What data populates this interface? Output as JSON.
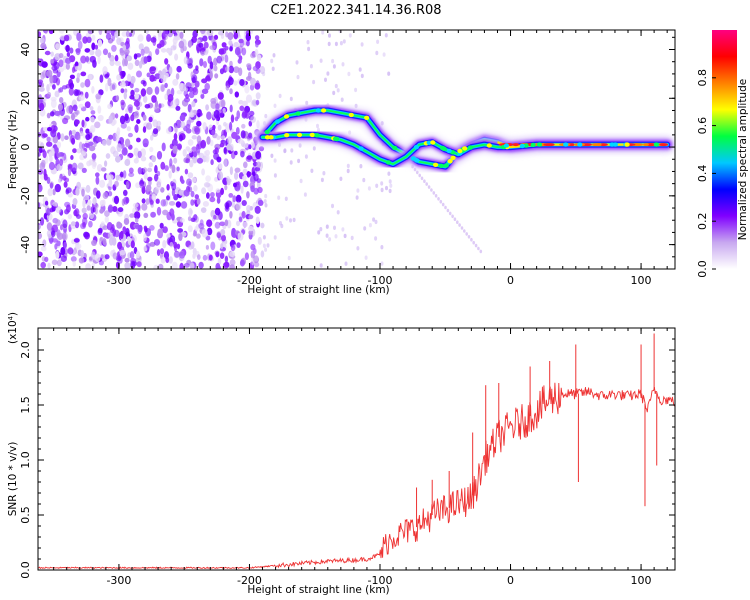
{
  "title": "C2E1.2022.341.14.36.R08",
  "chart_data": [
    {
      "type": "heatmap",
      "title": "C2E1.2022.341.14.36.R08",
      "xlabel": "Height of straight line (km)",
      "ylabel": "Frequency (Hz)",
      "xlim": [
        -362,
        126
      ],
      "ylim": [
        -50,
        48
      ],
      "x_ticks": [
        -300,
        -200,
        -100,
        0,
        100
      ],
      "y_ticks": [
        -40,
        -20,
        0,
        20,
        40
      ],
      "x_tick_labels": [
        "-300",
        "-200",
        "-100",
        "0",
        "100"
      ],
      "y_tick_labels": [
        "-40",
        "-20",
        "0",
        "20",
        "40"
      ],
      "grid": false,
      "signal_trace": {
        "x": [
          -190,
          -180,
          -170,
          -160,
          -150,
          -140,
          -130,
          -120,
          -110,
          -100,
          -90,
          -80,
          -70,
          -60,
          -50,
          -40,
          -30,
          -20,
          -10,
          0,
          20,
          40,
          60,
          80,
          100,
          120
        ],
        "upper_branch": [
          4,
          10,
          13,
          14,
          15,
          15,
          14,
          13,
          12,
          5,
          0,
          -3,
          -6,
          -7,
          -8,
          -2,
          1,
          3,
          2,
          0,
          1,
          1,
          1,
          1,
          1,
          1
        ],
        "lower_branch": [
          4,
          4,
          5,
          5,
          5,
          4,
          3,
          1,
          -2,
          -5,
          -7,
          -4,
          1,
          2,
          -1,
          -3,
          0,
          1,
          0,
          0,
          1,
          1,
          1,
          1,
          1,
          1
        ],
        "peak_amplitude": 0.9
      },
      "noise_region": {
        "x_start": -362,
        "x_end": -190,
        "amplitude": 0.15
      },
      "colorbar": {
        "label": "Normalized spectral amplitude",
        "range": [
          0.0,
          1.0
        ],
        "ticks": [
          0.0,
          0.2,
          0.4,
          0.6,
          0.8
        ],
        "tick_labels": [
          "0.0",
          "0.2",
          "0.4",
          "0.6",
          "0.8"
        ],
        "colors": [
          "#ffffff",
          "#c8a8f0",
          "#8000ff",
          "#0000ff",
          "#00c8ff",
          "#00ff40",
          "#ffff00",
          "#ff8000",
          "#ff0000",
          "#ff0080"
        ]
      }
    },
    {
      "type": "line",
      "xlabel": "Height of straight line (km)",
      "ylabel": "SNR (10 * v/v)",
      "y_multiplier_label": "(x10⁴)",
      "xlim": [
        -362,
        126
      ],
      "ylim": [
        0,
        2.2
      ],
      "x_ticks": [
        -300,
        -200,
        -100,
        0,
        100
      ],
      "y_ticks": [
        0.0,
        0.5,
        1.0,
        1.5,
        2.0
      ],
      "x_tick_labels": [
        "-300",
        "-200",
        "-100",
        "0",
        "100"
      ],
      "y_tick_labels": [
        "0.0",
        "0.5",
        "1.0",
        "1.5",
        "2.0"
      ],
      "line_color": "#ee3333",
      "x": [
        -362,
        -300,
        -250,
        -200,
        -180,
        -160,
        -140,
        -120,
        -110,
        -100,
        -95,
        -90,
        -80,
        -70,
        -60,
        -50,
        -40,
        -30,
        -25,
        -20,
        -10,
        0,
        10,
        20,
        30,
        40,
        50,
        60,
        70,
        80,
        90,
        100,
        105,
        110,
        115,
        120,
        126
      ],
      "y": [
        0.02,
        0.02,
        0.02,
        0.02,
        0.04,
        0.06,
        0.08,
        0.09,
        0.1,
        0.14,
        0.25,
        0.3,
        0.35,
        0.4,
        0.5,
        0.55,
        0.6,
        0.65,
        0.8,
        1.0,
        1.2,
        1.3,
        1.35,
        1.45,
        1.55,
        1.6,
        1.6,
        1.62,
        1.58,
        1.6,
        1.58,
        1.6,
        1.45,
        1.65,
        1.55,
        1.55,
        1.53
      ],
      "spikes": [
        {
          "x": -72,
          "y": 0.75
        },
        {
          "x": -60,
          "y": 0.82
        },
        {
          "x": -47,
          "y": 0.9
        },
        {
          "x": -29,
          "y": 1.25
        },
        {
          "x": -19,
          "y": 1.68
        },
        {
          "x": -9,
          "y": 1.7
        },
        {
          "x": 15,
          "y": 1.85
        },
        {
          "x": 30,
          "y": 1.9
        },
        {
          "x": 50,
          "y": 2.05
        },
        {
          "x": 52,
          "y": 0.8
        },
        {
          "x": 100,
          "y": 2.05
        },
        {
          "x": 103,
          "y": 0.58
        },
        {
          "x": 110,
          "y": 2.15
        },
        {
          "x": 112,
          "y": 0.95
        }
      ]
    }
  ]
}
